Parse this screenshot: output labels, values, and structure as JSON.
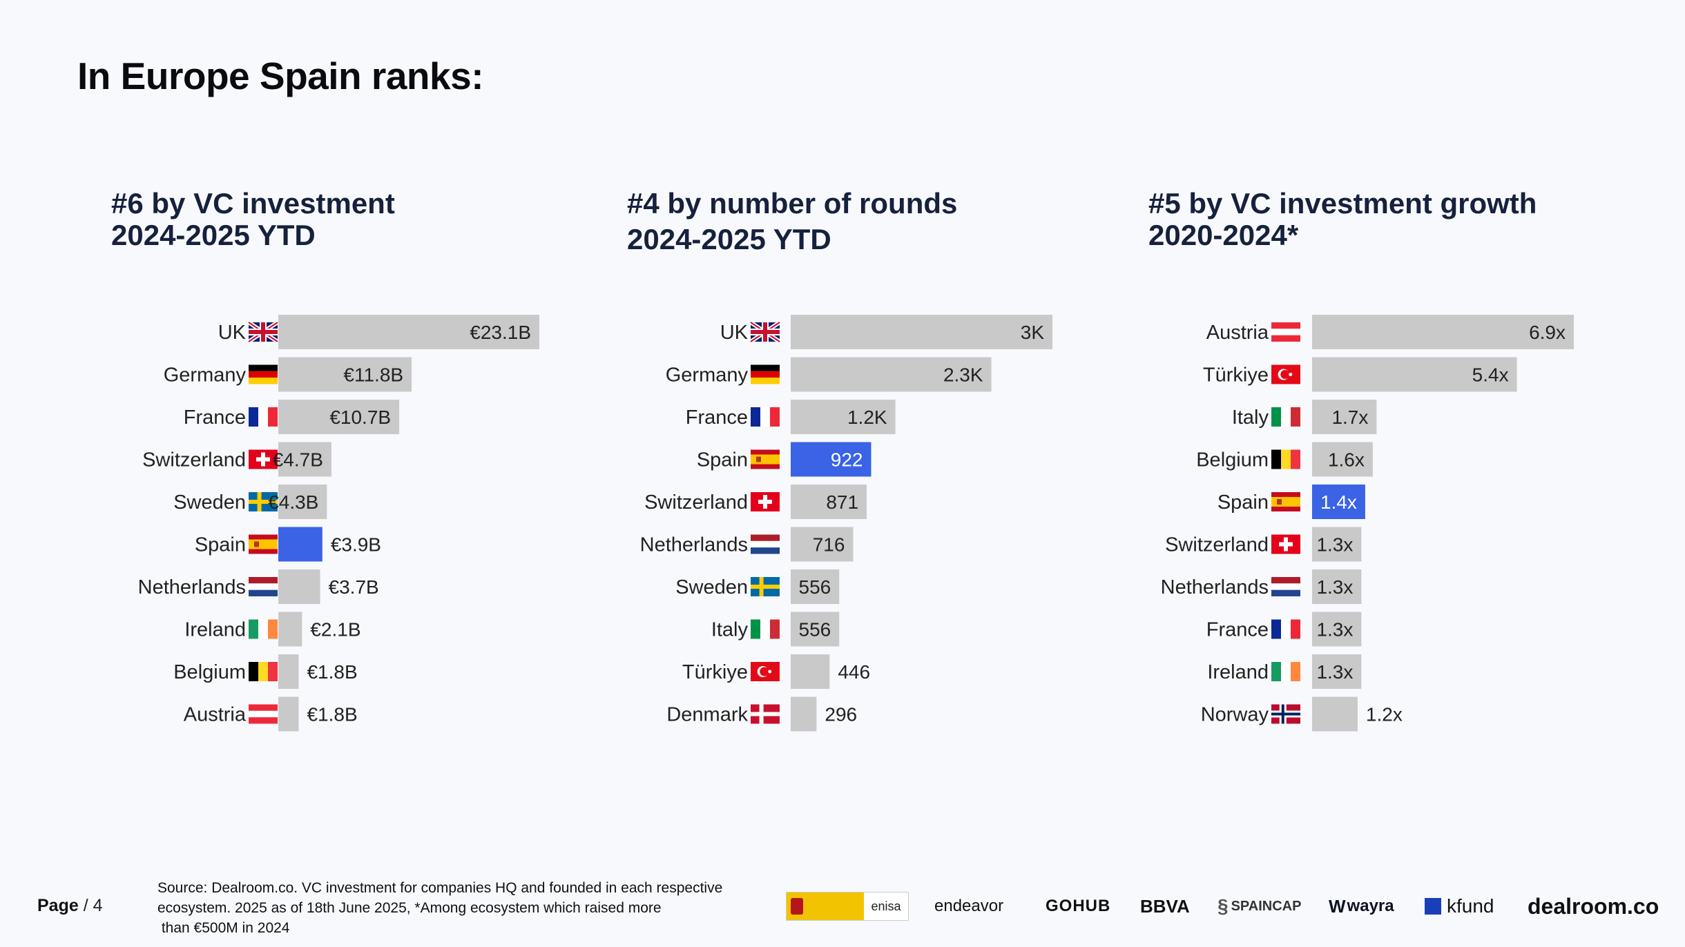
{
  "page": {
    "title": "In Europe Spain ranks:",
    "page_label": "Page",
    "page_number": "/ 4",
    "source_lines": [
      "Source:  Dealroom.co. VC investment for companies HQ and founded in each respective",
      "ecosystem. 2025 as of 18th June 2025, *Among ecosystem which raised more",
      " than €500M in 2024"
    ],
    "logos": {
      "gov": "enisa",
      "endeavor": "endeavor",
      "gohub": "GOHUB",
      "bbva": "BBVA",
      "spaincap": "SPAINCAP",
      "wayra": "wayra",
      "kfund": "kfund",
      "dealroom": "dealroom.co"
    }
  },
  "colors": {
    "bar": "#c9c9c9",
    "highlight": "#3a63e6",
    "text": "#222222",
    "title": "#15213d"
  },
  "chart_data": [
    {
      "type": "bar",
      "orientation": "horizontal",
      "title_lines": [
        "#6 by VC investment",
        "2024-2025 YTD"
      ],
      "categories": [
        "UK",
        "Germany",
        "France",
        "Switzerland",
        "Sweden",
        "Spain",
        "Netherlands",
        "Ireland",
        "Belgium",
        "Austria"
      ],
      "flags": [
        "uk",
        "de",
        "fr",
        "ch",
        "se",
        "es",
        "nl",
        "ie",
        "be",
        "at"
      ],
      "values": [
        23.1,
        11.8,
        10.7,
        4.7,
        4.3,
        3.9,
        3.7,
        2.1,
        1.8,
        1.8
      ],
      "labels": [
        "€23.1B",
        "€11.8B",
        "€10.7B",
        "€4.7B",
        "€4.3B",
        "€3.9B",
        "€3.7B",
        "€2.1B",
        "€1.8B",
        "€1.8B"
      ],
      "highlight": "Spain",
      "unit": "€B"
    },
    {
      "type": "bar",
      "orientation": "horizontal",
      "title_lines": [
        "#4 by number of rounds",
        "2024-2025 YTD"
      ],
      "categories": [
        "UK",
        "Germany",
        "France",
        "Spain",
        "Switzerland",
        "Netherlands",
        "Sweden",
        "Italy",
        "Türkiye",
        "Denmark"
      ],
      "flags": [
        "uk",
        "de",
        "fr",
        "es",
        "ch",
        "nl",
        "se",
        "it",
        "tr",
        "dk"
      ],
      "values": [
        3000,
        2300,
        1200,
        922,
        871,
        716,
        556,
        556,
        446,
        296
      ],
      "labels": [
        "3K",
        "2.3K",
        "1.2K",
        "922",
        "871",
        "716",
        "556",
        "556",
        "446",
        "296"
      ],
      "highlight": "Spain",
      "unit": "rounds"
    },
    {
      "type": "bar",
      "orientation": "horizontal",
      "title_lines": [
        "#5 by VC investment growth",
        "2020-2024*"
      ],
      "categories": [
        "Austria",
        "Türkiye",
        "Italy",
        "Belgium",
        "Spain",
        "Switzerland",
        "Netherlands",
        "France",
        "Ireland",
        "Norway"
      ],
      "flags": [
        "at",
        "tr",
        "it",
        "be",
        "es",
        "ch",
        "nl",
        "fr",
        "ie",
        "no"
      ],
      "values": [
        6.9,
        5.4,
        1.7,
        1.6,
        1.4,
        1.3,
        1.3,
        1.3,
        1.3,
        1.2
      ],
      "labels": [
        "6.9x",
        "5.4x",
        "1.7x",
        "1.6x",
        "1.4x",
        "1.3x",
        "1.3x",
        "1.3x",
        "1.3x",
        "1.2x"
      ],
      "highlight": "Spain",
      "unit": "x"
    }
  ]
}
